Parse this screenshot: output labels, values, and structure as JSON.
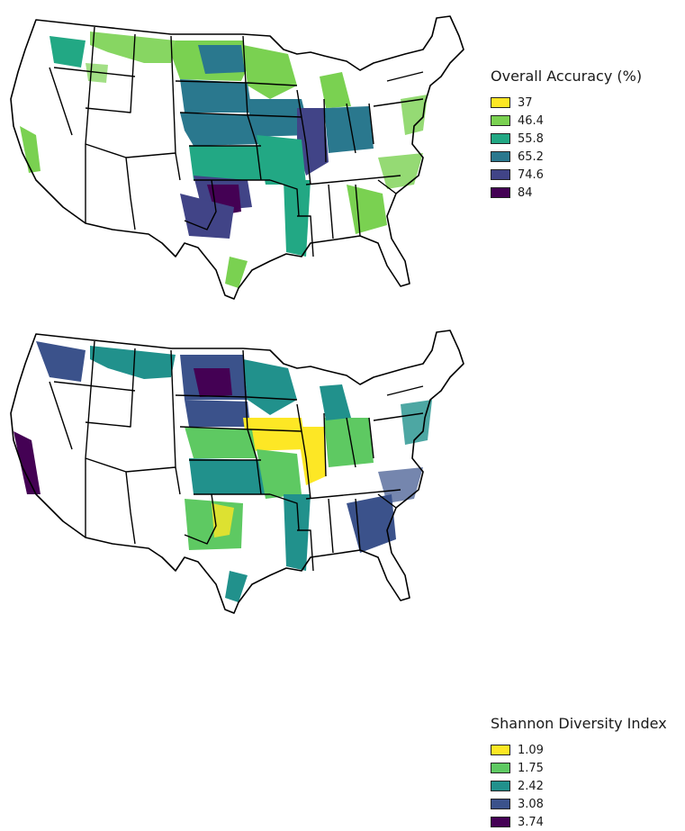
{
  "maps": [
    {
      "legend": {
        "title": "Overall Accuracy (%)",
        "items": [
          {
            "label": "37",
            "color": "#fde725"
          },
          {
            "label": "46.4",
            "color": "#7ad151"
          },
          {
            "label": "55.8",
            "color": "#22a884"
          },
          {
            "label": "65.2",
            "color": "#2a788e"
          },
          {
            "label": "74.6",
            "color": "#414487"
          },
          {
            "label": "84",
            "color": "#440154"
          }
        ]
      }
    },
    {
      "legend": {
        "title": "Shannon Diversity Index",
        "items": [
          {
            "label": "1.09",
            "color": "#fde725"
          },
          {
            "label": "1.75",
            "color": "#5ec962"
          },
          {
            "label": "2.42",
            "color": "#21918c"
          },
          {
            "label": "3.08",
            "color": "#3b528b"
          },
          {
            "label": "3.74",
            "color": "#440154"
          }
        ]
      }
    }
  ]
}
